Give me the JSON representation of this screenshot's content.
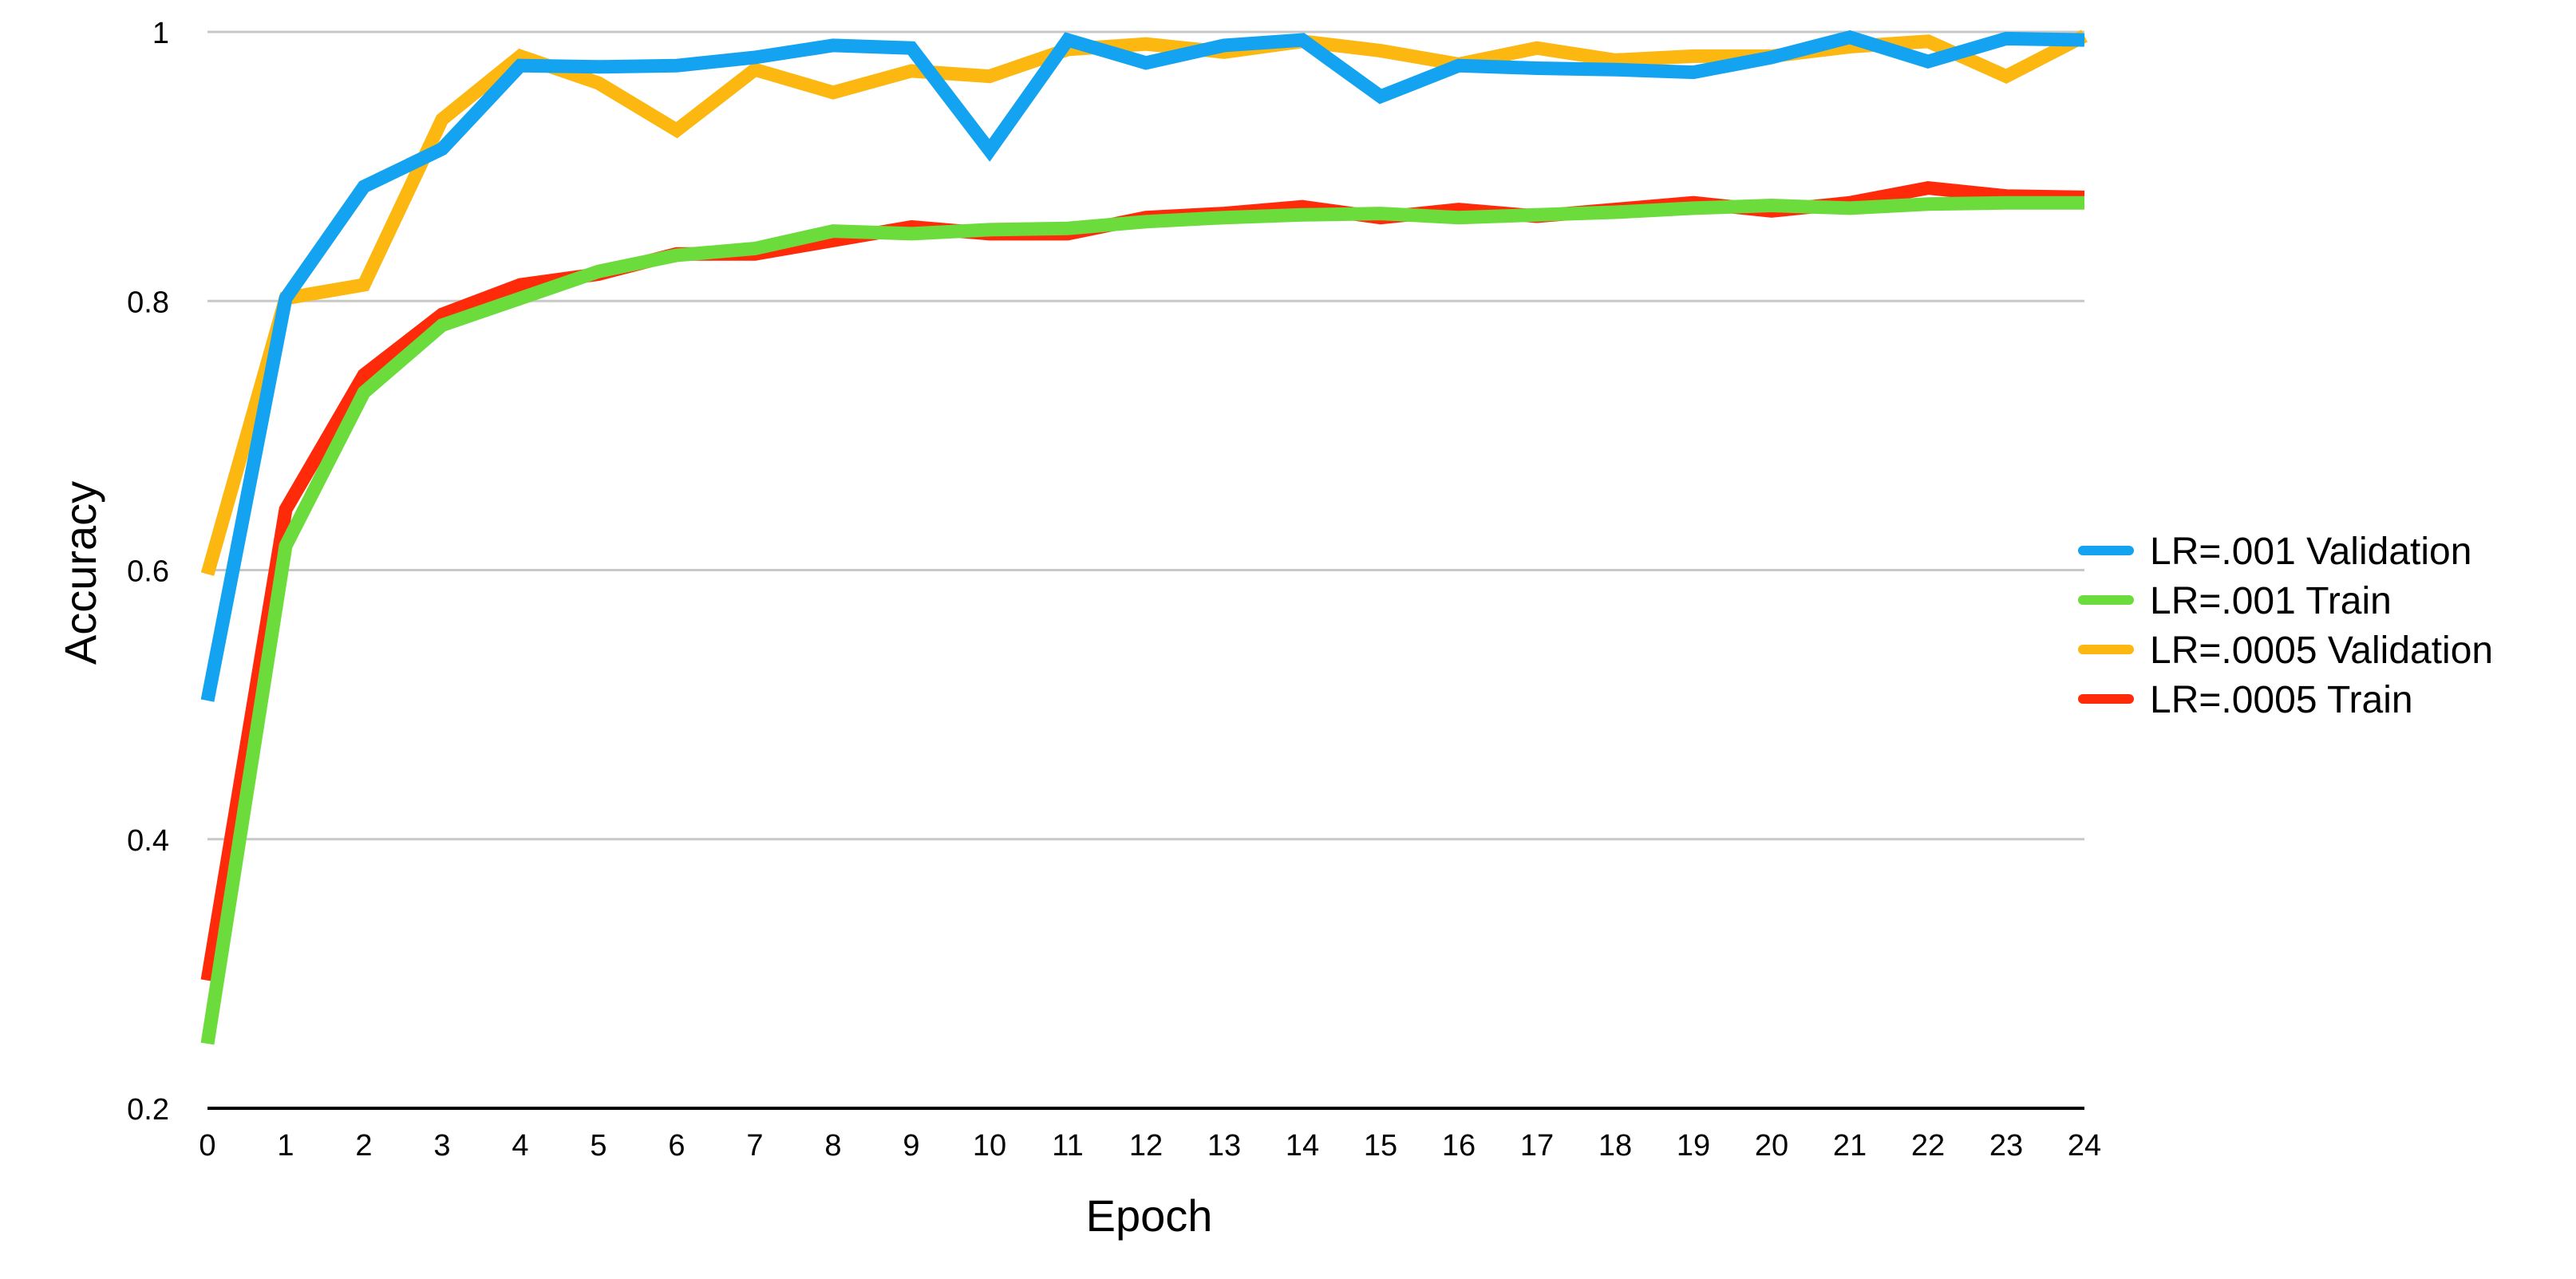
{
  "chart_data": {
    "type": "line",
    "title": "",
    "xlabel": "Epoch",
    "ylabel": "Accuracy",
    "x": [
      0,
      1,
      2,
      3,
      4,
      5,
      6,
      7,
      8,
      9,
      10,
      11,
      12,
      13,
      14,
      15,
      16,
      17,
      18,
      19,
      20,
      21,
      22,
      23,
      24
    ],
    "x_tick_labels": [
      "0",
      "1",
      "2",
      "3",
      "4",
      "5",
      "6",
      "7",
      "8",
      "9",
      "10",
      "11",
      "12",
      "13",
      "14",
      "15",
      "16",
      "17",
      "18",
      "19",
      "20",
      "21",
      "22",
      "23",
      "24"
    ],
    "xlim": [
      0,
      24
    ],
    "ylim": [
      0.2,
      1.0
    ],
    "y_ticks": [
      0.2,
      0.4,
      0.6,
      0.8,
      1.0
    ],
    "y_tick_labels": [
      "0.2",
      "0.4",
      "0.6",
      "0.8",
      "1"
    ],
    "grid": "horizontal",
    "legend_position": "right",
    "series": [
      {
        "name": "LR=.0005 Train",
        "color": "#FF2A0A",
        "values": [
          0.295,
          0.645,
          0.745,
          0.79,
          0.812,
          0.82,
          0.835,
          0.835,
          0.845,
          0.855,
          0.85,
          0.85,
          0.862,
          0.865,
          0.87,
          0.862,
          0.868,
          0.863,
          0.868,
          0.873,
          0.867,
          0.873,
          0.884,
          0.878,
          0.877
        ]
      },
      {
        "name": "LR=.001 Train",
        "color": "#6CDB3C",
        "values": [
          0.248,
          0.618,
          0.732,
          0.782,
          0.802,
          0.822,
          0.834,
          0.839,
          0.852,
          0.85,
          0.853,
          0.854,
          0.859,
          0.862,
          0.864,
          0.865,
          0.862,
          0.864,
          0.866,
          0.869,
          0.871,
          0.869,
          0.872,
          0.873,
          0.873
        ]
      },
      {
        "name": "LR=.0005 Validation",
        "color": "#FCB711",
        "values": [
          0.597,
          0.802,
          0.812,
          0.935,
          0.982,
          0.962,
          0.927,
          0.972,
          0.955,
          0.971,
          0.967,
          0.987,
          0.991,
          0.985,
          0.993,
          0.986,
          0.976,
          0.988,
          0.979,
          0.982,
          0.982,
          0.989,
          0.993,
          0.967,
          0.997
        ]
      },
      {
        "name": "LR=.001 Validation",
        "color": "#13A3F0",
        "values": [
          0.503,
          0.802,
          0.885,
          0.913,
          0.975,
          0.974,
          0.975,
          0.981,
          0.99,
          0.988,
          0.912,
          0.994,
          0.977,
          0.99,
          0.994,
          0.952,
          0.975,
          0.973,
          0.972,
          0.97,
          0.981,
          0.996,
          0.978,
          0.995,
          0.994
        ]
      }
    ],
    "legend_order": [
      "LR=.001 Validation",
      "LR=.001 Train",
      "LR=.0005 Validation",
      "LR=.0005 Train"
    ]
  }
}
